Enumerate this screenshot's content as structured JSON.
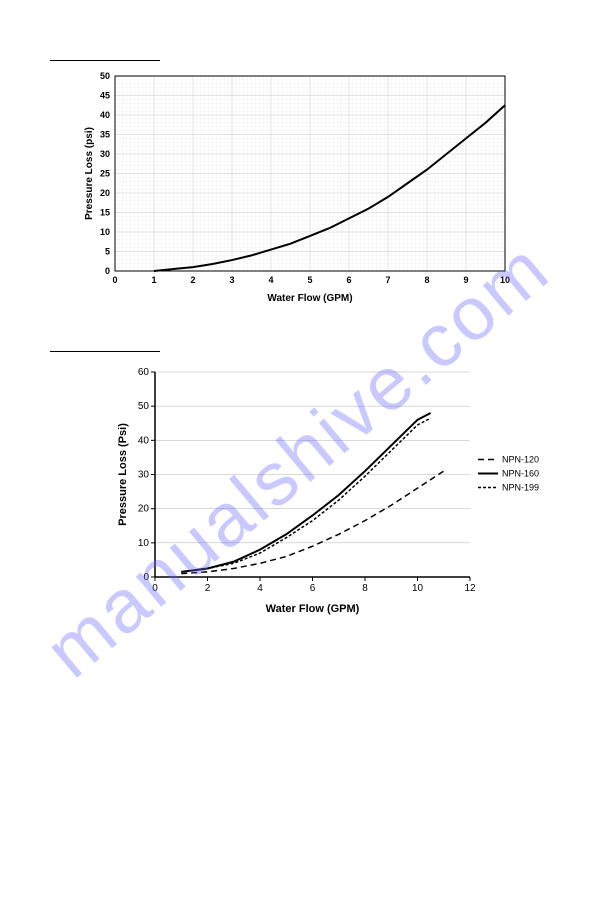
{
  "watermark": "manualshive.com",
  "chart1": {
    "type": "line",
    "ylabel": "Pressure Loss (psi)",
    "xlabel": "Water Flow (GPM)",
    "xlim": [
      0,
      10
    ],
    "ylim": [
      0,
      50
    ],
    "xtick_step": 1,
    "ytick_step": 5,
    "grid_color": "#d0d0d0",
    "minor_grid_color": "#e8e8e8",
    "line_color": "#000000",
    "line_width": 2,
    "background_color": "#ffffff",
    "axis_label_fontsize": 10,
    "tick_fontsize": 9,
    "data": {
      "x": [
        1,
        1.5,
        2,
        2.5,
        3,
        3.5,
        4,
        4.5,
        5,
        5.5,
        6,
        6.5,
        7,
        7.5,
        8,
        8.5,
        9,
        9.5,
        10
      ],
      "y": [
        0,
        0.5,
        1,
        1.8,
        2.8,
        4,
        5.5,
        7,
        9,
        11,
        13.5,
        16,
        19,
        22.5,
        26,
        30,
        34,
        38,
        42.5
      ]
    }
  },
  "chart2": {
    "type": "line",
    "ylabel": "Pressure Loss (Psi)",
    "xlabel": "Water Flow (GPM)",
    "xlim": [
      0,
      12
    ],
    "ylim": [
      0,
      60
    ],
    "xtick_step": 2,
    "ytick_step": 10,
    "grid_color": "#b0b0b0",
    "line_color": "#000000",
    "background_color": "#ffffff",
    "axis_label_fontsize": 11,
    "tick_fontsize": 10,
    "legend_position": "right",
    "legend_fontsize": 9,
    "series": [
      {
        "name": "NPN-120",
        "dash": "6,4",
        "width": 1.5,
        "x": [
          1,
          2,
          3,
          4,
          5,
          6,
          7,
          8,
          9,
          10,
          11
        ],
        "y": [
          1,
          1.5,
          2.5,
          4,
          6,
          9,
          12.5,
          16.5,
          21,
          26,
          31
        ]
      },
      {
        "name": "NPN-160",
        "dash": "none",
        "width": 2,
        "x": [
          1,
          2,
          3,
          4,
          5,
          6,
          7,
          8,
          9,
          10,
          10.5
        ],
        "y": [
          1.5,
          2.5,
          4.5,
          8,
          12.5,
          18,
          24,
          31,
          38.5,
          46,
          48
        ]
      },
      {
        "name": "NPN-199",
        "dash": "3,2",
        "width": 1.5,
        "x": [
          1,
          2,
          3,
          4,
          5,
          6,
          7,
          8,
          9,
          10,
          10.5
        ],
        "y": [
          1.5,
          2.5,
          4,
          7,
          11.5,
          16.5,
          22.5,
          29.5,
          37,
          44.5,
          46.5
        ]
      }
    ]
  }
}
